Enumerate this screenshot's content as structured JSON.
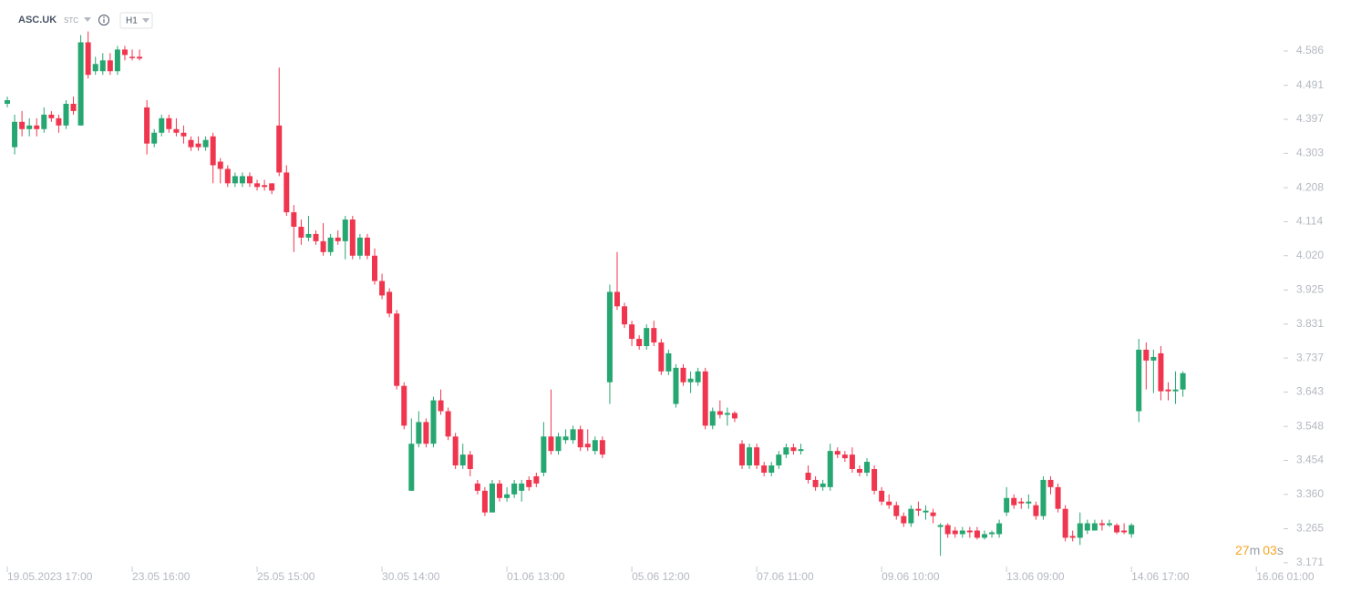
{
  "header": {
    "symbol": "ASC.UK",
    "source": "STC",
    "interval": "H1"
  },
  "countdown": {
    "minutes": "27",
    "minutes_unit": "m",
    "seconds": "03",
    "seconds_unit": "s"
  },
  "chart_data": {
    "type": "candlestick",
    "up_color": "#26a671",
    "down_color": "#f0364f",
    "ylim": [
      3.153,
      4.727
    ],
    "yticks": [
      4.586,
      4.491,
      4.397,
      4.303,
      4.208,
      4.114,
      {
        "value": 4.02,
        "label": "4.020"
      },
      3.925,
      3.831,
      3.737,
      3.643,
      3.548,
      3.454,
      {
        "value": 3.36,
        "label": "3.360"
      },
      3.265,
      3.171
    ],
    "categories": [
      "19.05.2023 17:00",
      null,
      null,
      null,
      null,
      null,
      null,
      null,
      null,
      null,
      null,
      null,
      null,
      null,
      null,
      null,
      null,
      "23.05 16:00",
      null,
      null,
      null,
      null,
      null,
      null,
      null,
      null,
      null,
      null,
      null,
      null,
      null,
      null,
      null,
      null,
      "25.05 15:00",
      null,
      null,
      null,
      null,
      null,
      null,
      null,
      null,
      null,
      null,
      null,
      null,
      null,
      null,
      null,
      null,
      "30.05 14:00",
      null,
      null,
      null,
      null,
      null,
      null,
      null,
      null,
      null,
      null,
      null,
      null,
      null,
      null,
      null,
      null,
      "01.06 13:00",
      null,
      null,
      null,
      null,
      null,
      null,
      null,
      null,
      null,
      null,
      null,
      null,
      null,
      null,
      null,
      null,
      "05.06 12:00",
      null,
      null,
      null,
      null,
      null,
      null,
      null,
      null,
      null,
      null,
      null,
      null,
      null,
      null,
      null,
      null,
      "07.06 11:00",
      null,
      null,
      null,
      null,
      null,
      null,
      null,
      null,
      null,
      null,
      null,
      null,
      null,
      null,
      null,
      null,
      "09.06 10:00",
      null,
      null,
      null,
      null,
      null,
      null,
      null,
      null,
      null,
      null,
      null,
      null,
      null,
      null,
      null,
      null,
      "13.06 09:00",
      null,
      null,
      null,
      null,
      null,
      null,
      null,
      null,
      null,
      null,
      null,
      null,
      null,
      null,
      null,
      null,
      "14.06 17:00",
      null,
      null,
      null,
      null,
      null,
      null,
      null,
      null,
      null,
      null,
      null,
      null,
      null,
      null,
      null,
      null,
      "16.06 01:00"
    ],
    "open": [
      4.44,
      4.32,
      4.39,
      4.37,
      4.38,
      4.37,
      4.41,
      4.4,
      4.38,
      4.44,
      4.38,
      4.61,
      4.53,
      4.53,
      4.56,
      4.53,
      4.59,
      4.57,
      4.57,
      4.43,
      4.33,
      4.36,
      4.4,
      4.37,
      4.36,
      4.34,
      4.33,
      4.32,
      4.35,
      4.28,
      4.26,
      4.22,
      4.22,
      4.24,
      4.22,
      4.215,
      4.22,
      4.38,
      4.25,
      4.14,
      4.1,
      4.07,
      4.08,
      4.06,
      4.03,
      4.07,
      4.06,
      4.12,
      4.02,
      4.07,
      4.02,
      3.95,
      3.92,
      3.86,
      3.66,
      3.37,
      3.5,
      3.56,
      3.5,
      3.62,
      3.59,
      3.52,
      3.44,
      3.47,
      3.39,
      3.37,
      3.31,
      3.39,
      3.35,
      3.36,
      3.37,
      3.4,
      3.41,
      3.42,
      3.52,
      3.48,
      3.51,
      3.51,
      3.54,
      3.5,
      3.48,
      3.51,
      3.67,
      3.92,
      3.88,
      3.83,
      3.79,
      3.77,
      3.82,
      3.78,
      3.7,
      3.61,
      3.71,
      3.67,
      3.67,
      3.7,
      3.55,
      3.59,
      3.58,
      3.585,
      3.5,
      3.44,
      3.49,
      3.44,
      3.42,
      3.44,
      3.47,
      3.49,
      3.48,
      3.42,
      3.4,
      3.38,
      3.38,
      3.48,
      3.47,
      3.47,
      3.43,
      3.42,
      3.43,
      3.37,
      3.34,
      3.33,
      3.3,
      3.28,
      3.32,
      3.31,
      3.31,
      3.27,
      3.275,
      3.26,
      3.25,
      3.26,
      3.26,
      3.24,
      3.25,
      3.25,
      3.31,
      3.35,
      3.34,
      3.335,
      3.33,
      3.3,
      3.4,
      3.38,
      3.32,
      3.245,
      3.24,
      3.26,
      3.26,
      3.28,
      3.275,
      3.275,
      3.26,
      3.25,
      3.59,
      3.76,
      3.73,
      3.75,
      3.65,
      3.645,
      3.65,
      null,
      null,
      null,
      null,
      null,
      null,
      null,
      null,
      null,
      null
    ],
    "high": [
      4.46,
      4.41,
      4.42,
      4.4,
      4.4,
      4.43,
      4.42,
      4.41,
      4.45,
      4.46,
      4.63,
      4.64,
      4.57,
      4.58,
      4.58,
      4.6,
      4.6,
      4.59,
      4.59,
      4.45,
      4.37,
      4.41,
      4.41,
      4.4,
      4.38,
      4.35,
      4.35,
      4.35,
      4.36,
      4.29,
      4.27,
      4.25,
      4.25,
      4.25,
      4.23,
      4.23,
      4.22,
      4.54,
      4.27,
      4.16,
      4.12,
      4.13,
      4.09,
      4.11,
      4.08,
      4.09,
      4.13,
      4.13,
      4.08,
      4.08,
      4.04,
      3.97,
      3.93,
      3.87,
      3.67,
      3.57,
      3.59,
      3.57,
      3.63,
      3.65,
      3.6,
      3.53,
      3.5,
      3.48,
      3.4,
      3.38,
      3.4,
      3.4,
      3.38,
      3.4,
      3.4,
      3.41,
      3.42,
      3.56,
      3.65,
      3.53,
      3.54,
      3.55,
      3.55,
      3.54,
      3.52,
      3.52,
      3.94,
      4.03,
      3.89,
      3.84,
      3.8,
      3.83,
      3.84,
      3.79,
      3.76,
      3.72,
      3.72,
      3.7,
      3.71,
      3.71,
      3.6,
      3.62,
      3.6,
      3.59,
      3.51,
      3.5,
      3.5,
      3.45,
      3.45,
      3.48,
      3.5,
      3.5,
      3.5,
      3.44,
      3.41,
      3.4,
      3.5,
      3.49,
      3.48,
      3.49,
      3.44,
      3.46,
      3.44,
      3.38,
      3.36,
      3.34,
      3.31,
      3.33,
      3.34,
      3.33,
      3.32,
      3.28,
      3.28,
      3.27,
      3.27,
      3.27,
      3.27,
      3.26,
      3.26,
      3.29,
      3.38,
      3.36,
      3.35,
      3.36,
      3.34,
      3.41,
      3.41,
      3.39,
      3.33,
      3.26,
      3.31,
      3.29,
      3.29,
      3.29,
      3.29,
      3.28,
      3.28,
      3.28,
      3.79,
      3.78,
      3.76,
      3.77,
      3.67,
      3.7,
      3.7,
      null,
      null,
      null,
      null,
      null,
      null,
      null,
      null,
      null,
      null
    ],
    "low": [
      4.43,
      4.3,
      4.35,
      4.35,
      4.35,
      4.36,
      4.39,
      4.36,
      4.37,
      4.41,
      4.38,
      4.51,
      4.52,
      4.52,
      4.52,
      4.52,
      4.56,
      4.56,
      4.56,
      4.3,
      4.32,
      4.35,
      4.36,
      4.35,
      4.33,
      4.31,
      4.31,
      4.31,
      4.22,
      4.22,
      4.21,
      4.21,
      4.21,
      4.21,
      4.2,
      4.2,
      4.19,
      4.24,
      4.13,
      4.03,
      4.05,
      4.06,
      4.05,
      4.02,
      4.02,
      4.05,
      4.01,
      4.01,
      4.01,
      4.01,
      3.94,
      3.9,
      3.85,
      3.65,
      3.54,
      3.37,
      3.49,
      3.49,
      3.49,
      3.58,
      3.51,
      3.43,
      3.43,
      3.41,
      3.36,
      3.3,
      3.31,
      3.34,
      3.34,
      3.35,
      3.34,
      3.37,
      3.38,
      3.41,
      3.47,
      3.47,
      3.5,
      3.5,
      3.48,
      3.48,
      3.47,
      3.46,
      3.61,
      3.87,
      3.82,
      3.77,
      3.76,
      3.76,
      3.77,
      3.69,
      3.69,
      3.6,
      3.66,
      3.64,
      3.66,
      3.54,
      3.54,
      3.57,
      3.55,
      3.56,
      3.43,
      3.43,
      3.43,
      3.41,
      3.41,
      3.43,
      3.46,
      3.47,
      3.47,
      3.39,
      3.37,
      3.37,
      3.37,
      3.46,
      3.45,
      3.42,
      3.41,
      3.41,
      3.36,
      3.33,
      3.32,
      3.29,
      3.27,
      3.27,
      3.3,
      3.29,
      3.28,
      3.19,
      3.24,
      3.24,
      3.24,
      3.24,
      3.235,
      3.235,
      3.24,
      3.24,
      3.3,
      3.32,
      3.32,
      3.32,
      3.29,
      3.29,
      3.36,
      3.31,
      3.23,
      3.23,
      3.22,
      3.25,
      3.26,
      3.26,
      3.27,
      3.25,
      3.25,
      3.24,
      3.56,
      3.65,
      3.64,
      3.62,
      3.62,
      3.61,
      3.63,
      null,
      null,
      null,
      null,
      null,
      null,
      null,
      null,
      null,
      null
    ],
    "close": [
      4.45,
      4.39,
      4.37,
      4.38,
      4.37,
      4.41,
      4.4,
      4.38,
      4.44,
      4.42,
      4.61,
      4.52,
      4.55,
      4.56,
      4.53,
      4.59,
      4.575,
      4.568,
      4.565,
      4.33,
      4.36,
      4.4,
      4.37,
      4.36,
      4.35,
      4.32,
      4.32,
      4.34,
      4.27,
      4.26,
      4.22,
      4.24,
      4.24,
      4.22,
      4.21,
      4.21,
      4.2,
      4.25,
      4.14,
      4.1,
      4.07,
      4.08,
      4.06,
      4.03,
      4.07,
      4.06,
      4.12,
      4.02,
      4.07,
      4.02,
      3.95,
      3.91,
      3.86,
      3.66,
      3.55,
      3.5,
      3.56,
      3.5,
      3.62,
      3.59,
      3.52,
      3.44,
      3.47,
      3.43,
      3.37,
      3.31,
      3.39,
      3.35,
      3.36,
      3.39,
      3.39,
      3.38,
      3.39,
      3.52,
      3.48,
      3.52,
      3.52,
      3.54,
      3.49,
      3.49,
      3.51,
      3.47,
      3.92,
      3.88,
      3.83,
      3.79,
      3.77,
      3.82,
      3.78,
      3.7,
      3.75,
      3.71,
      3.67,
      3.68,
      3.7,
      3.55,
      3.59,
      3.58,
      3.585,
      3.57,
      3.44,
      3.49,
      3.44,
      3.42,
      3.44,
      3.47,
      3.49,
      3.48,
      3.485,
      3.4,
      3.38,
      3.39,
      3.48,
      3.47,
      3.46,
      3.43,
      3.42,
      3.45,
      3.37,
      3.34,
      3.33,
      3.3,
      3.28,
      3.32,
      3.315,
      3.315,
      3.3,
      3.275,
      3.25,
      3.25,
      3.26,
      3.255,
      3.24,
      3.25,
      3.255,
      3.28,
      3.35,
      3.33,
      3.335,
      3.34,
      3.3,
      3.4,
      3.38,
      3.32,
      3.24,
      3.24,
      3.28,
      3.28,
      3.28,
      3.275,
      3.28,
      3.255,
      3.255,
      3.275,
      3.76,
      3.73,
      3.74,
      3.645,
      3.645,
      3.65,
      3.695,
      null,
      null,
      null,
      null,
      null,
      null,
      null,
      null,
      null,
      null
    ]
  }
}
